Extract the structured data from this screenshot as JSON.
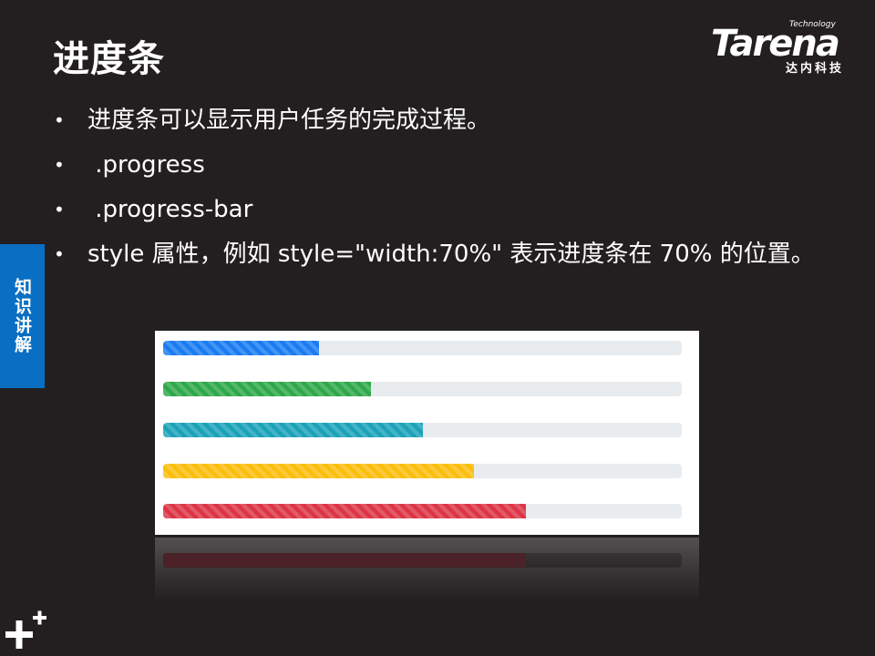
{
  "slide": {
    "title": "进度条",
    "side_tab": "知识讲解",
    "bullets": [
      "进度条可以显示用户任务的完成过程。",
      " .progress",
      " .progress-bar",
      "style 属性，例如 style=\"width:70%\" 表示进度条在 70% 的位置。"
    ],
    "bullet_symbol": "•"
  },
  "logo": {
    "tagline": "Technology",
    "wordmark": "Tarena",
    "chinese": "达内科技"
  },
  "progress_demo": {
    "bars": [
      {
        "name": "primary",
        "value": 30,
        "color": "#1a7cf2"
      },
      {
        "name": "success",
        "value": 40,
        "color": "#2ea84a"
      },
      {
        "name": "info",
        "value": 50,
        "color": "#1ba2b8"
      },
      {
        "name": "warning",
        "value": 60,
        "color": "#fbbe0d"
      },
      {
        "name": "danger",
        "value": 70,
        "color": "#dc3545"
      }
    ]
  },
  "colors": {
    "background": "#231f20",
    "side_tab": "#0a6fc2",
    "track": "#e9ecef"
  },
  "icons": {
    "corner": "plus-plus-icon"
  }
}
